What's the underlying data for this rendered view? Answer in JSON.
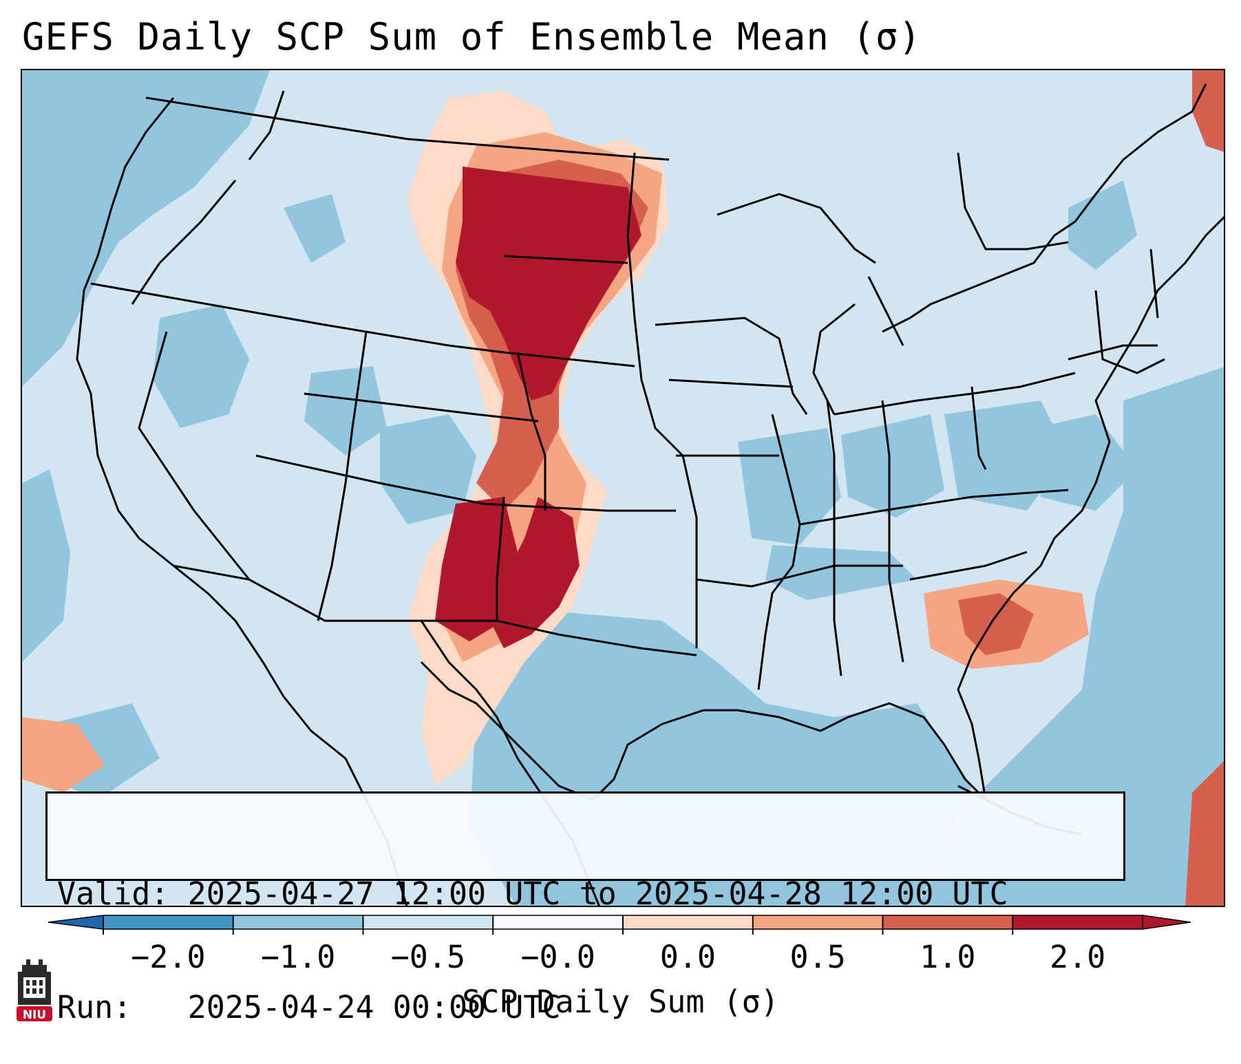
{
  "title": "GEFS Daily SCP Sum of Ensemble Mean (σ)",
  "info": {
    "valid_line": "Valid: 2025-04-27 12:00 UTC to 2025-04-28 12:00 UTC",
    "run_line": "Run:   2025-04-24 00:00 UTC"
  },
  "colorbar": {
    "label": "SCP Daily Sum (σ)",
    "ticks": [
      "−2.0",
      "−1.0",
      "−0.5",
      "−0.0",
      "0.0",
      "0.5",
      "1.0",
      "2.0"
    ],
    "colors": [
      "#4393c3",
      "#92c5de",
      "#d1e5f0",
      "#f7fbff",
      "#fddbc7",
      "#f4a582",
      "#d6604d",
      "#b2182b"
    ],
    "extend_low_color": "#2166ac",
    "extend_high_color": "#b2182b"
  },
  "map": {
    "background_color": "#d2e5f0",
    "region": "Contiguous United States with Gulf of Mexico"
  },
  "logo": {
    "text": "NIU",
    "color": "#c8102e"
  }
}
